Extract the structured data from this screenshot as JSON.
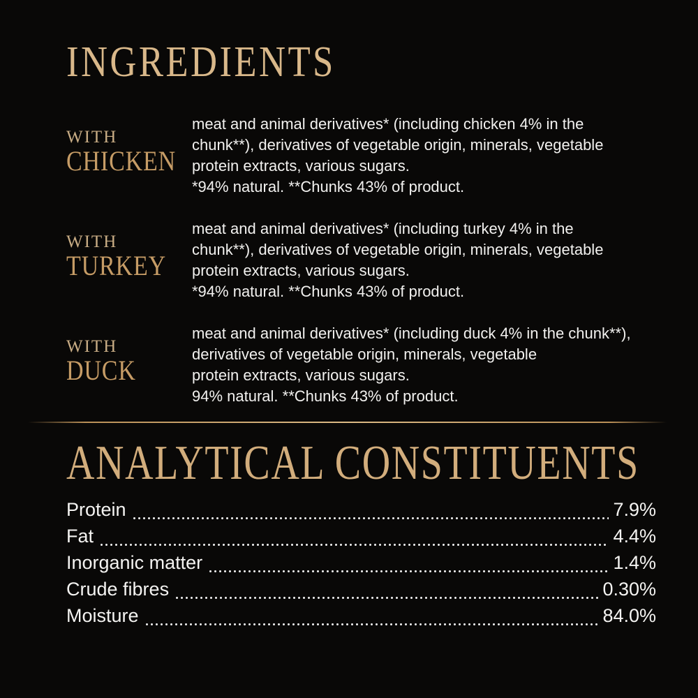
{
  "page": {
    "background": "#090807",
    "accent_gold": "#d9b88a",
    "label_gold": "#c69c66",
    "text_color": "#f2f1ef"
  },
  "ingredients": {
    "title": "INGREDIENTS",
    "sections": [
      {
        "prefix": "WITH",
        "name": "CHICKEN",
        "description": "meat and animal derivatives* (including chicken 4% in the\nchunk**), derivatives of vegetable origin, minerals, vegetable\nprotein extracts, various sugars.\n*94% natural. **Chunks 43% of product."
      },
      {
        "prefix": "WITH",
        "name": "TURKEY",
        "description": "meat and animal derivatives* (including turkey 4% in the\nchunk**), derivatives of vegetable origin, minerals, vegetable\nprotein extracts, various sugars.\n*94% natural. **Chunks 43% of product."
      },
      {
        "prefix": "WITH",
        "name": "DUCK",
        "description": "meat and animal derivatives* (including duck 4% in the chunk**),\nderivatives of vegetable origin, minerals, vegetable\nprotein extracts, various sugars.\n94% natural. **Chunks 43% of product."
      }
    ]
  },
  "analytical": {
    "title": "ANALYTICAL CONSTITUENTS",
    "rows": [
      {
        "label": "Protein",
        "value": "7.9%"
      },
      {
        "label": "Fat",
        "value": "4.4%"
      },
      {
        "label": "Inorganic matter",
        "value": "1.4%"
      },
      {
        "label": "Crude fibres",
        "value": "0.30%"
      },
      {
        "label": "Moisture",
        "value": "84.0%"
      }
    ]
  }
}
